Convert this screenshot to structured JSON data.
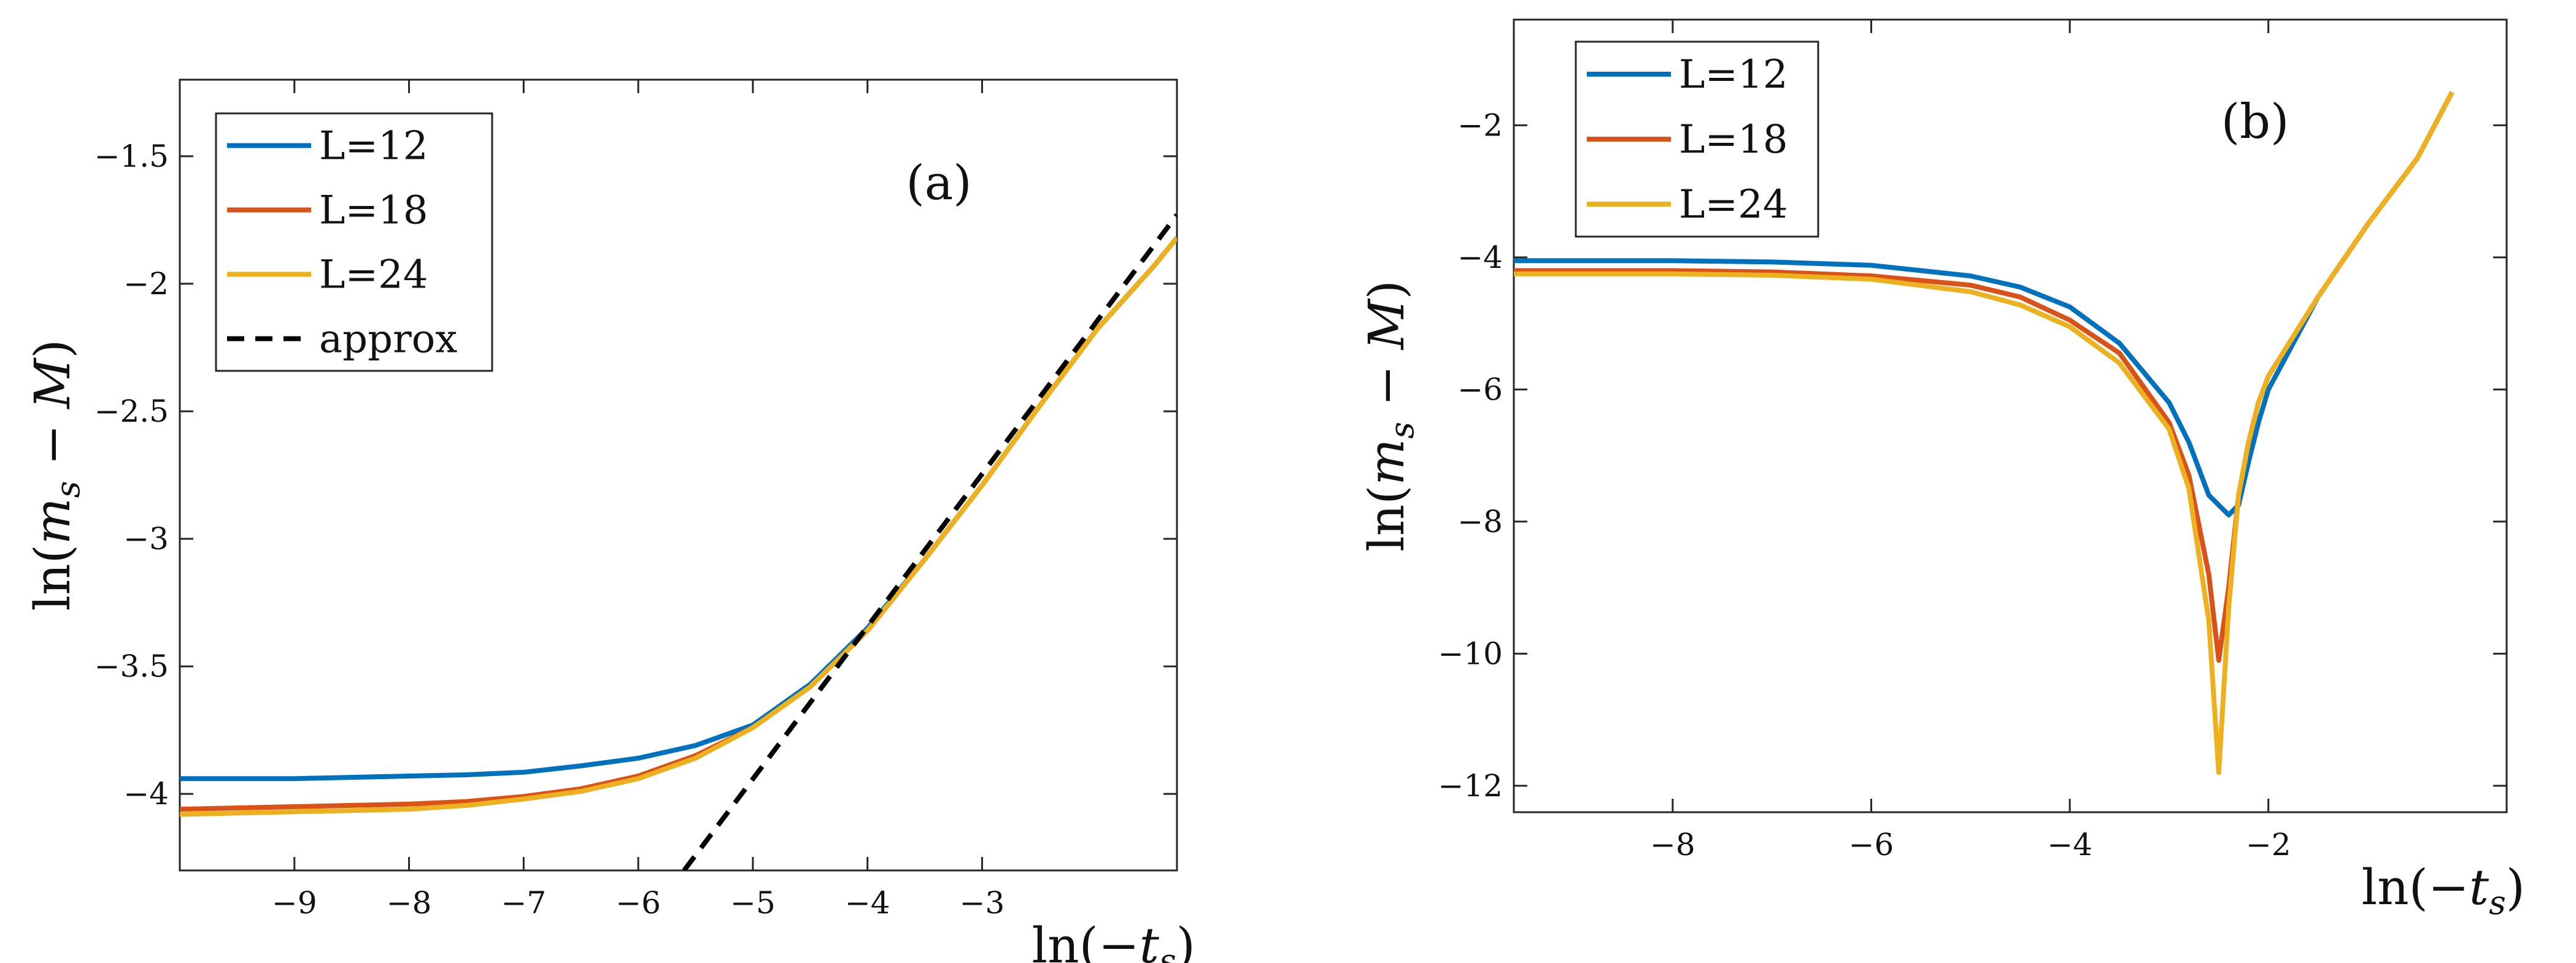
{
  "chart_data": [
    {
      "type": "line",
      "panel_label": "(a)",
      "xlabel": "ln(−t_s)",
      "ylabel": "ln(m_s − M)",
      "xlim": [
        -10,
        -1.3
      ],
      "ylim": [
        -4.3,
        -1.2
      ],
      "xticks": [
        -9,
        -8,
        -7,
        -6,
        -5,
        -4,
        -3
      ],
      "yticks": [
        -4,
        -3.5,
        -3,
        -2.5,
        -2,
        -1.5
      ],
      "xtick_labels": [
        "−9",
        "−8",
        "−7",
        "−6",
        "−5",
        "−4",
        "−3"
      ],
      "ytick_labels": [
        "−4",
        "−3.5",
        "−3",
        "−2.5",
        "−2",
        "−1.5"
      ],
      "legend_position": "top-left",
      "series": [
        {
          "name": "L=12",
          "color": "#0072BD",
          "style": "solid",
          "x": [
            -10,
            -9.5,
            -9,
            -8.5,
            -8,
            -7.5,
            -7,
            -6.5,
            -6,
            -5.5,
            -5,
            -4.5,
            -4,
            -3.5,
            -3,
            -2.5,
            -2,
            -1.5,
            -1.3
          ],
          "y": [
            -3.94,
            -3.94,
            -3.94,
            -3.935,
            -3.93,
            -3.925,
            -3.915,
            -3.89,
            -3.86,
            -3.81,
            -3.73,
            -3.57,
            -3.35,
            -3.08,
            -2.79,
            -2.48,
            -2.18,
            -1.93,
            -1.82
          ]
        },
        {
          "name": "L=18",
          "color": "#D95319",
          "style": "solid",
          "x": [
            -10,
            -9.5,
            -9,
            -8.5,
            -8,
            -7.5,
            -7,
            -6.5,
            -6,
            -5.5,
            -5,
            -4.5,
            -4,
            -3.5,
            -3,
            -2.5,
            -2,
            -1.5,
            -1.3
          ],
          "y": [
            -4.06,
            -4.055,
            -4.05,
            -4.045,
            -4.04,
            -4.03,
            -4.01,
            -3.98,
            -3.93,
            -3.85,
            -3.74,
            -3.58,
            -3.36,
            -3.08,
            -2.79,
            -2.48,
            -2.18,
            -1.93,
            -1.82
          ]
        },
        {
          "name": "L=24",
          "color": "#EDB120",
          "style": "solid",
          "x": [
            -10,
            -9.5,
            -9,
            -8.5,
            -8,
            -7.5,
            -7,
            -6.5,
            -6,
            -5.5,
            -5,
            -4.5,
            -4,
            -3.5,
            -3,
            -2.5,
            -2,
            -1.5,
            -1.3
          ],
          "y": [
            -4.08,
            -4.075,
            -4.07,
            -4.065,
            -4.06,
            -4.045,
            -4.02,
            -3.99,
            -3.94,
            -3.86,
            -3.74,
            -3.58,
            -3.36,
            -3.08,
            -2.79,
            -2.48,
            -2.18,
            -1.93,
            -1.82
          ]
        },
        {
          "name": "approx",
          "color": "#000000",
          "style": "dashed",
          "x": [
            -5.6,
            -1.3
          ],
          "y": [
            -4.3,
            -1.73
          ]
        }
      ]
    },
    {
      "type": "line",
      "panel_label": "(b)",
      "xlabel": "ln(−t_s)",
      "ylabel": "ln(m_s − M)",
      "xlim": [
        -9.6,
        0.4
      ],
      "ylim": [
        -12.4,
        -0.4
      ],
      "xticks": [
        -8,
        -6,
        -4,
        -2
      ],
      "yticks": [
        -12,
        -10,
        -8,
        -6,
        -4,
        -2
      ],
      "xtick_labels": [
        "−8",
        "−6",
        "−4",
        "−2"
      ],
      "ytick_labels": [
        "−12",
        "−10",
        "−8",
        "−6",
        "−4",
        "−2"
      ],
      "legend_position": "top-left",
      "series": [
        {
          "name": "L=12",
          "color": "#0072BD",
          "style": "solid",
          "x": [
            -9.6,
            -8,
            -7,
            -6,
            -5,
            -4.5,
            -4,
            -3.5,
            -3,
            -2.8,
            -2.6,
            -2.4,
            -2.3,
            -2.2,
            -2.1,
            -2,
            -1.5,
            -1,
            -0.5,
            -0.15
          ],
          "y": [
            -4.05,
            -4.05,
            -4.07,
            -4.12,
            -4.28,
            -4.45,
            -4.75,
            -5.3,
            -6.2,
            -6.8,
            -7.6,
            -7.9,
            -7.75,
            -7.1,
            -6.5,
            -6.0,
            -4.6,
            -3.5,
            -2.5,
            -1.5
          ]
        },
        {
          "name": "L=18",
          "color": "#D95319",
          "style": "solid",
          "x": [
            -9.6,
            -8,
            -7,
            -6,
            -5,
            -4.5,
            -4,
            -3.5,
            -3,
            -2.8,
            -2.6,
            -2.5,
            -2.4,
            -2.3,
            -2.2,
            -2.1,
            -2,
            -1.5,
            -1,
            -0.5,
            -0.15
          ],
          "y": [
            -4.2,
            -4.2,
            -4.22,
            -4.28,
            -4.42,
            -4.6,
            -4.95,
            -5.45,
            -6.5,
            -7.3,
            -8.8,
            -10.1,
            -9.0,
            -7.6,
            -6.8,
            -6.2,
            -5.8,
            -4.6,
            -3.5,
            -2.5,
            -1.5
          ]
        },
        {
          "name": "L=24",
          "color": "#EDB120",
          "style": "solid",
          "x": [
            -9.6,
            -8,
            -7,
            -6,
            -5,
            -4.5,
            -4,
            -3.5,
            -3,
            -2.8,
            -2.6,
            -2.5,
            -2.4,
            -2.3,
            -2.2,
            -2.1,
            -2,
            -1.5,
            -1,
            -0.5,
            -0.15
          ],
          "y": [
            -4.25,
            -4.25,
            -4.27,
            -4.33,
            -4.52,
            -4.72,
            -5.05,
            -5.6,
            -6.6,
            -7.5,
            -9.5,
            -11.8,
            -9.3,
            -7.6,
            -6.8,
            -6.2,
            -5.8,
            -4.6,
            -3.5,
            -2.5,
            -1.5
          ]
        }
      ]
    }
  ]
}
